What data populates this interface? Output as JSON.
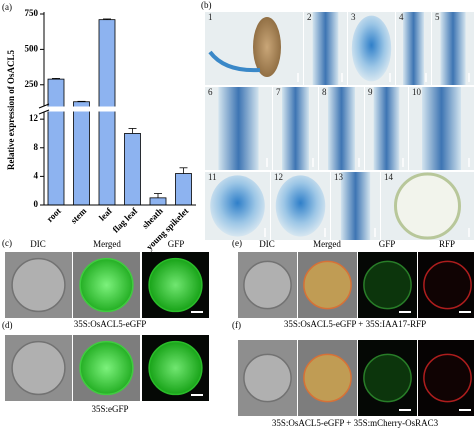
{
  "panel_labels": [
    "(a)",
    "(b)",
    "(c)",
    "(d)",
    "(e)",
    "(f)"
  ],
  "chart_data": {
    "type": "bar",
    "ylabel": "Relative expression of OsACL5",
    "categories": [
      "root",
      "stem",
      "leaf",
      "flag leaf",
      "sheath",
      "young spikelet"
    ],
    "values": [
      290,
      130,
      710,
      10,
      1,
      4.4
    ],
    "errors": [
      5,
      3,
      5,
      0.7,
      0.6,
      0.8
    ],
    "color": "#8db3f0",
    "ylim": [
      0,
      750
    ],
    "ybreak": [
      13,
      100
    ],
    "yticks": [
      0,
      4,
      8,
      12,
      250,
      500,
      750
    ]
  },
  "panel_b": {
    "image_labels": [
      "1",
      "2",
      "3",
      "4",
      "5",
      "6",
      "7",
      "8",
      "9",
      "10",
      "11",
      "12",
      "13",
      "14"
    ]
  },
  "panel_c": {
    "columns": [
      "DIC",
      "Merged",
      "GFP"
    ],
    "caption": "35S:OsACL5-eGFP"
  },
  "panel_d": {
    "caption": "35S:eGFP"
  },
  "panel_e": {
    "columns": [
      "DIC",
      "Merged",
      "GFP",
      "RFP"
    ],
    "caption": "35S:OsACL5-eGFP + 35S:IAA17-RFP"
  },
  "panel_f": {
    "caption": "35S:OsACL5-eGFP + 35S:mCherry-OsRAC3"
  }
}
